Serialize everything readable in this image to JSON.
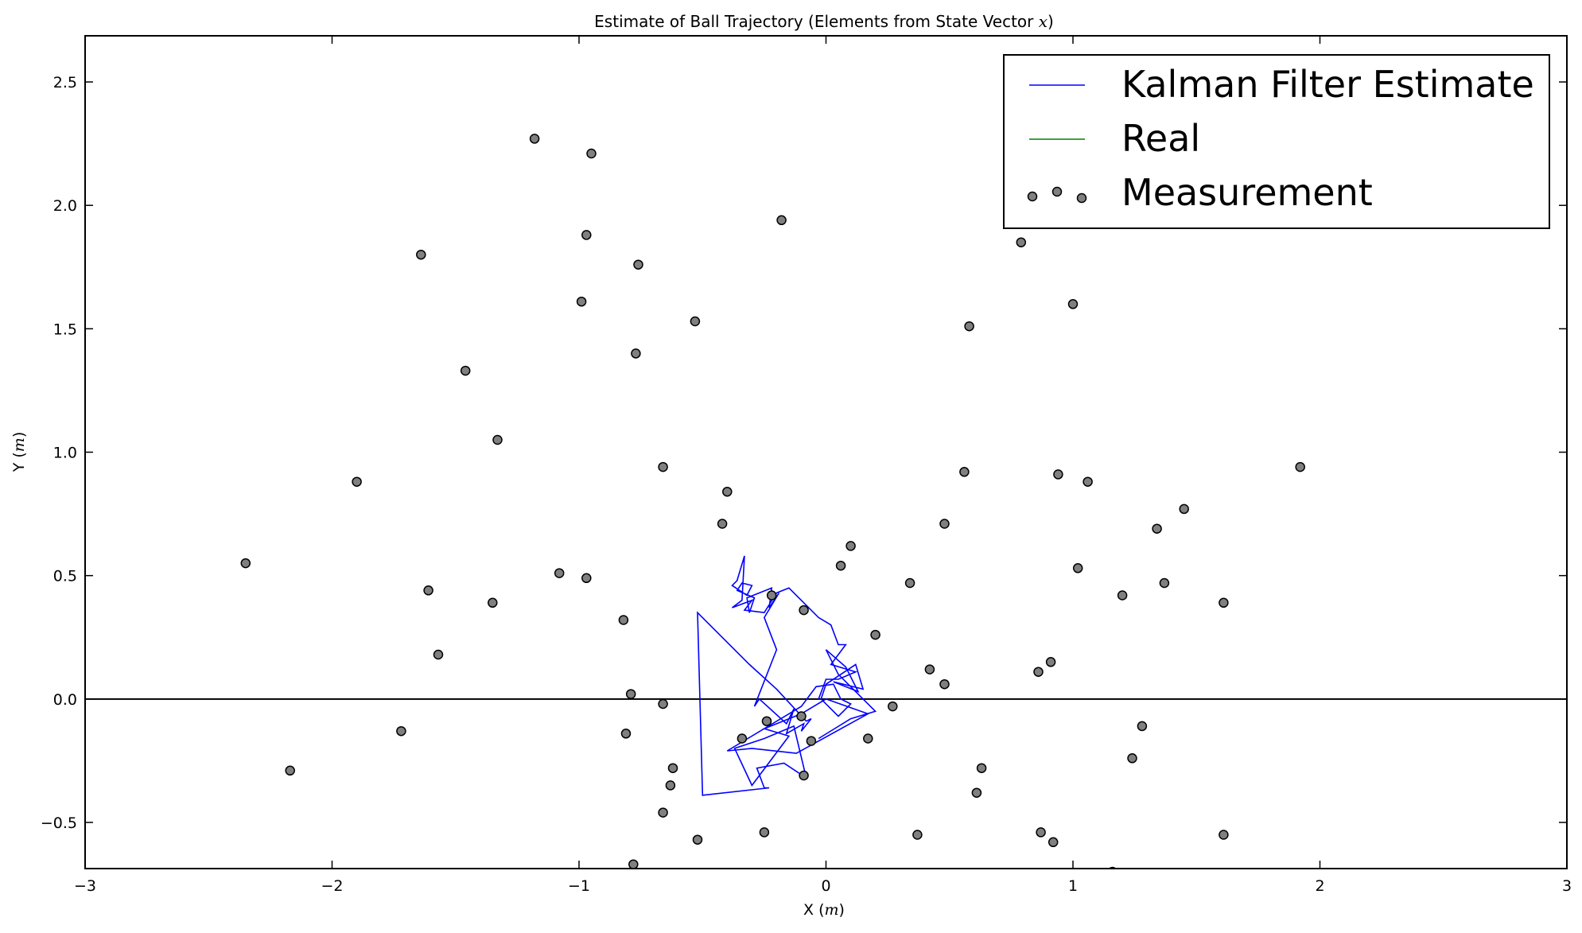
{
  "chart_data": {
    "type": "scatter",
    "title": "Estimate of Ball Trajectory (Elements from State Vector ",
    "title_var": "x",
    "title_close": ")",
    "xlabel": "X (",
    "xlabel_unit": "m",
    "xlabel_close": ")",
    "ylabel": "Y (",
    "ylabel_unit": "m",
    "ylabel_close": ")",
    "xlim": [
      -3,
      3
    ],
    "ylim": [
      -0.687,
      2.687
    ],
    "xticks": [
      -3,
      -2,
      -1,
      0,
      1,
      2,
      3
    ],
    "xtick_labels": [
      "−3",
      "−2",
      "−1",
      "0",
      "1",
      "2",
      "3"
    ],
    "yticks": [
      -0.5,
      0.0,
      0.5,
      1.0,
      1.5,
      2.0,
      2.5
    ],
    "ytick_labels": [
      "−0.5",
      "0.0",
      "0.5",
      "1.0",
      "1.5",
      "2.0",
      "2.5"
    ],
    "grid": false,
    "legend_position": "top-right",
    "legend": [
      {
        "label": "Kalman Filter Estimate",
        "kind": "line",
        "color": "#0000ff"
      },
      {
        "label": "Real",
        "kind": "line",
        "color": "#008000"
      },
      {
        "label": "Measurement",
        "kind": "marker",
        "color": "#808080"
      }
    ],
    "series": [
      {
        "name": "Kalman Filter Estimate",
        "kind": "line",
        "color": "#0000ff",
        "x": [
          -0.03,
          0.1,
          0.2,
          0.05,
          0.0,
          0.08,
          0.13,
          0.03,
          0.15,
          0.12,
          0.0,
          -0.02,
          0.05,
          0.1,
          0.06,
          0.03,
          -0.04,
          -0.1,
          -0.4,
          -0.3,
          -0.12,
          0.17,
          0.0,
          -0.1,
          -0.25,
          -0.15,
          -0.3,
          -0.37,
          -0.25,
          -0.13,
          -0.08,
          -0.17,
          -0.28,
          -0.25,
          -0.23,
          -0.5,
          -0.52,
          -0.31,
          -0.2,
          -0.08,
          -0.06,
          -0.1,
          -0.09,
          -0.16,
          -0.13,
          -0.16,
          -0.27,
          -0.29,
          -0.2,
          -0.25,
          -0.19,
          -0.23,
          -0.22,
          -0.32,
          -0.31,
          -0.29,
          -0.36,
          -0.34,
          -0.3,
          -0.32,
          -0.38,
          -0.36,
          -0.33,
          -0.34,
          -0.38,
          -0.3,
          -0.33,
          -0.25,
          -0.2,
          -0.15,
          -0.03,
          0.02,
          0.05,
          0.08,
          0.02,
          0.12,
          0.05,
          0.0,
          -0.03
        ],
        "y": [
          -0.16,
          -0.08,
          -0.05,
          0.1,
          0.2,
          0.13,
          0.03,
          0.07,
          0.04,
          0.14,
          0.06,
          0.0,
          -0.07,
          -0.02,
          0.0,
          0.06,
          0.05,
          -0.03,
          -0.21,
          -0.2,
          -0.22,
          -0.06,
          0.0,
          -0.06,
          -0.12,
          -0.15,
          -0.35,
          -0.2,
          -0.16,
          -0.11,
          -0.32,
          -0.26,
          -0.28,
          -0.36,
          -0.36,
          -0.39,
          0.35,
          0.14,
          0.04,
          -0.09,
          -0.08,
          -0.13,
          -0.1,
          -0.14,
          -0.04,
          -0.1,
          0.0,
          -0.03,
          0.2,
          0.33,
          0.43,
          0.37,
          0.45,
          0.41,
          0.35,
          0.41,
          0.44,
          0.47,
          0.46,
          0.42,
          0.46,
          0.48,
          0.58,
          0.4,
          0.37,
          0.4,
          0.36,
          0.35,
          0.43,
          0.45,
          0.33,
          0.3,
          0.22,
          0.22,
          0.14,
          0.11,
          0.08,
          0.08,
          0.0
        ]
      },
      {
        "name": "Real",
        "kind": "line",
        "color": "#008000",
        "x": [],
        "y": []
      },
      {
        "name": "Measurement",
        "kind": "scatter",
        "color": "#808080",
        "points": [
          [
            -2.35,
            0.55
          ],
          [
            -2.17,
            -0.29
          ],
          [
            -1.9,
            0.88
          ],
          [
            -1.72,
            -0.13
          ],
          [
            -1.64,
            1.8
          ],
          [
            -1.61,
            0.44
          ],
          [
            -1.57,
            0.18
          ],
          [
            -1.46,
            1.33
          ],
          [
            -1.35,
            0.39
          ],
          [
            -1.33,
            1.05
          ],
          [
            -1.18,
            2.27
          ],
          [
            -1.08,
            0.51
          ],
          [
            -0.99,
            1.61
          ],
          [
            -0.97,
            0.49
          ],
          [
            -0.97,
            1.88
          ],
          [
            -0.95,
            2.21
          ],
          [
            -0.82,
            0.32
          ],
          [
            -0.81,
            -0.14
          ],
          [
            -0.79,
            0.02
          ],
          [
            -0.78,
            -0.67
          ],
          [
            -0.77,
            1.4
          ],
          [
            -0.76,
            1.76
          ],
          [
            -0.66,
            0.94
          ],
          [
            -0.66,
            -0.46
          ],
          [
            -0.66,
            -0.02
          ],
          [
            -0.63,
            -0.35
          ],
          [
            -0.62,
            -0.28
          ],
          [
            -0.53,
            1.53
          ],
          [
            -0.52,
            -0.57
          ],
          [
            -0.42,
            0.71
          ],
          [
            -0.4,
            0.84
          ],
          [
            -0.34,
            -0.16
          ],
          [
            -0.25,
            -0.54
          ],
          [
            -0.24,
            -0.09
          ],
          [
            -0.22,
            0.42
          ],
          [
            -0.18,
            1.94
          ],
          [
            -0.1,
            -0.07
          ],
          [
            -0.09,
            0.36
          ],
          [
            -0.09,
            -0.31
          ],
          [
            -0.06,
            -0.17
          ],
          [
            0.06,
            0.54
          ],
          [
            0.1,
            0.62
          ],
          [
            0.17,
            -0.16
          ],
          [
            0.2,
            0.26
          ],
          [
            0.27,
            -0.03
          ],
          [
            0.34,
            0.47
          ],
          [
            0.37,
            -0.55
          ],
          [
            0.42,
            0.12
          ],
          [
            0.48,
            0.71
          ],
          [
            0.48,
            0.06
          ],
          [
            0.56,
            0.92
          ],
          [
            0.58,
            1.51
          ],
          [
            0.61,
            -0.38
          ],
          [
            0.63,
            -0.28
          ],
          [
            0.79,
            1.85
          ],
          [
            0.81,
            2.04
          ],
          [
            0.86,
            0.11
          ],
          [
            0.87,
            -0.54
          ],
          [
            0.91,
            0.15
          ],
          [
            0.91,
            2.05
          ],
          [
            0.92,
            -0.58
          ],
          [
            0.94,
            0.91
          ],
          [
            1.0,
            1.6
          ],
          [
            1.02,
            0.53
          ],
          [
            1.03,
            2.04
          ],
          [
            1.06,
            0.88
          ],
          [
            1.16,
            -0.7
          ],
          [
            1.2,
            0.42
          ],
          [
            1.24,
            -0.24
          ],
          [
            1.28,
            -0.11
          ],
          [
            1.34,
            0.69
          ],
          [
            1.37,
            0.47
          ],
          [
            1.45,
            0.77
          ],
          [
            1.61,
            0.39
          ],
          [
            1.61,
            -0.55
          ],
          [
            1.92,
            0.94
          ]
        ]
      }
    ],
    "hline": 0.0
  }
}
